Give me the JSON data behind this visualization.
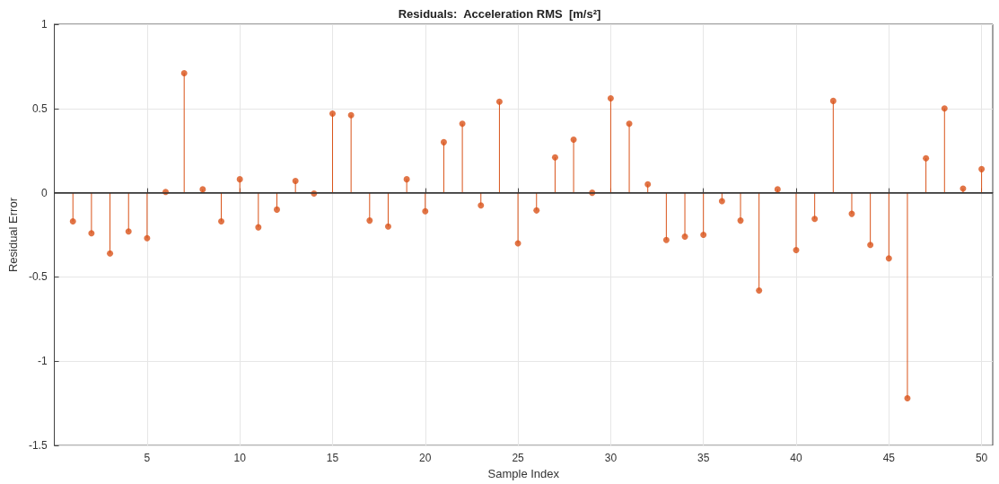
{
  "chart_data": {
    "type": "lollipop",
    "title": "Residuals:  Acceleration RMS  [m/s²]",
    "xlabel": "Sample Index",
    "ylabel": "Residual Error",
    "x": [
      1,
      2,
      3,
      4,
      5,
      6,
      7,
      8,
      9,
      10,
      11,
      12,
      13,
      14,
      15,
      16,
      17,
      18,
      19,
      20,
      21,
      22,
      23,
      24,
      25,
      26,
      27,
      28,
      29,
      30,
      31,
      32,
      33,
      34,
      35,
      36,
      37,
      38,
      39,
      40,
      41,
      42,
      43,
      44,
      45,
      46,
      47,
      48,
      49,
      50
    ],
    "series": [
      {
        "color": "#d95319",
        "values": [
          -0.17,
          -0.24,
          -0.36,
          -0.23,
          -0.27,
          0.005,
          0.71,
          0.02,
          -0.17,
          0.08,
          -0.205,
          -0.1,
          0.07,
          -0.005,
          0.47,
          0.46,
          -0.165,
          -0.2,
          0.08,
          -0.11,
          0.3,
          0.41,
          -0.075,
          0.54,
          -0.3,
          -0.105,
          0.21,
          0.315,
          0,
          0.56,
          0.41,
          0.05,
          -0.28,
          -0.26,
          -0.25,
          -0.05,
          -0.165,
          -0.58,
          0.02,
          -0.34,
          -0.155,
          0.545,
          -0.125,
          -0.31,
          -0.39,
          -1.22,
          0.205,
          0.5,
          0.025,
          0.14
        ]
      }
    ],
    "xlim": [
      0,
      50.6
    ],
    "xticks": [
      5,
      10,
      15,
      20,
      25,
      30,
      35,
      40,
      45,
      50
    ],
    "ylim": [
      -1.5,
      1
    ],
    "yticks": [
      -1.5,
      -1,
      -0.5,
      0,
      0.5,
      1
    ],
    "ref_lines": [
      {
        "axis": "y",
        "value": 0,
        "color": "#333333"
      }
    ],
    "grid": true,
    "marker": "circle"
  }
}
